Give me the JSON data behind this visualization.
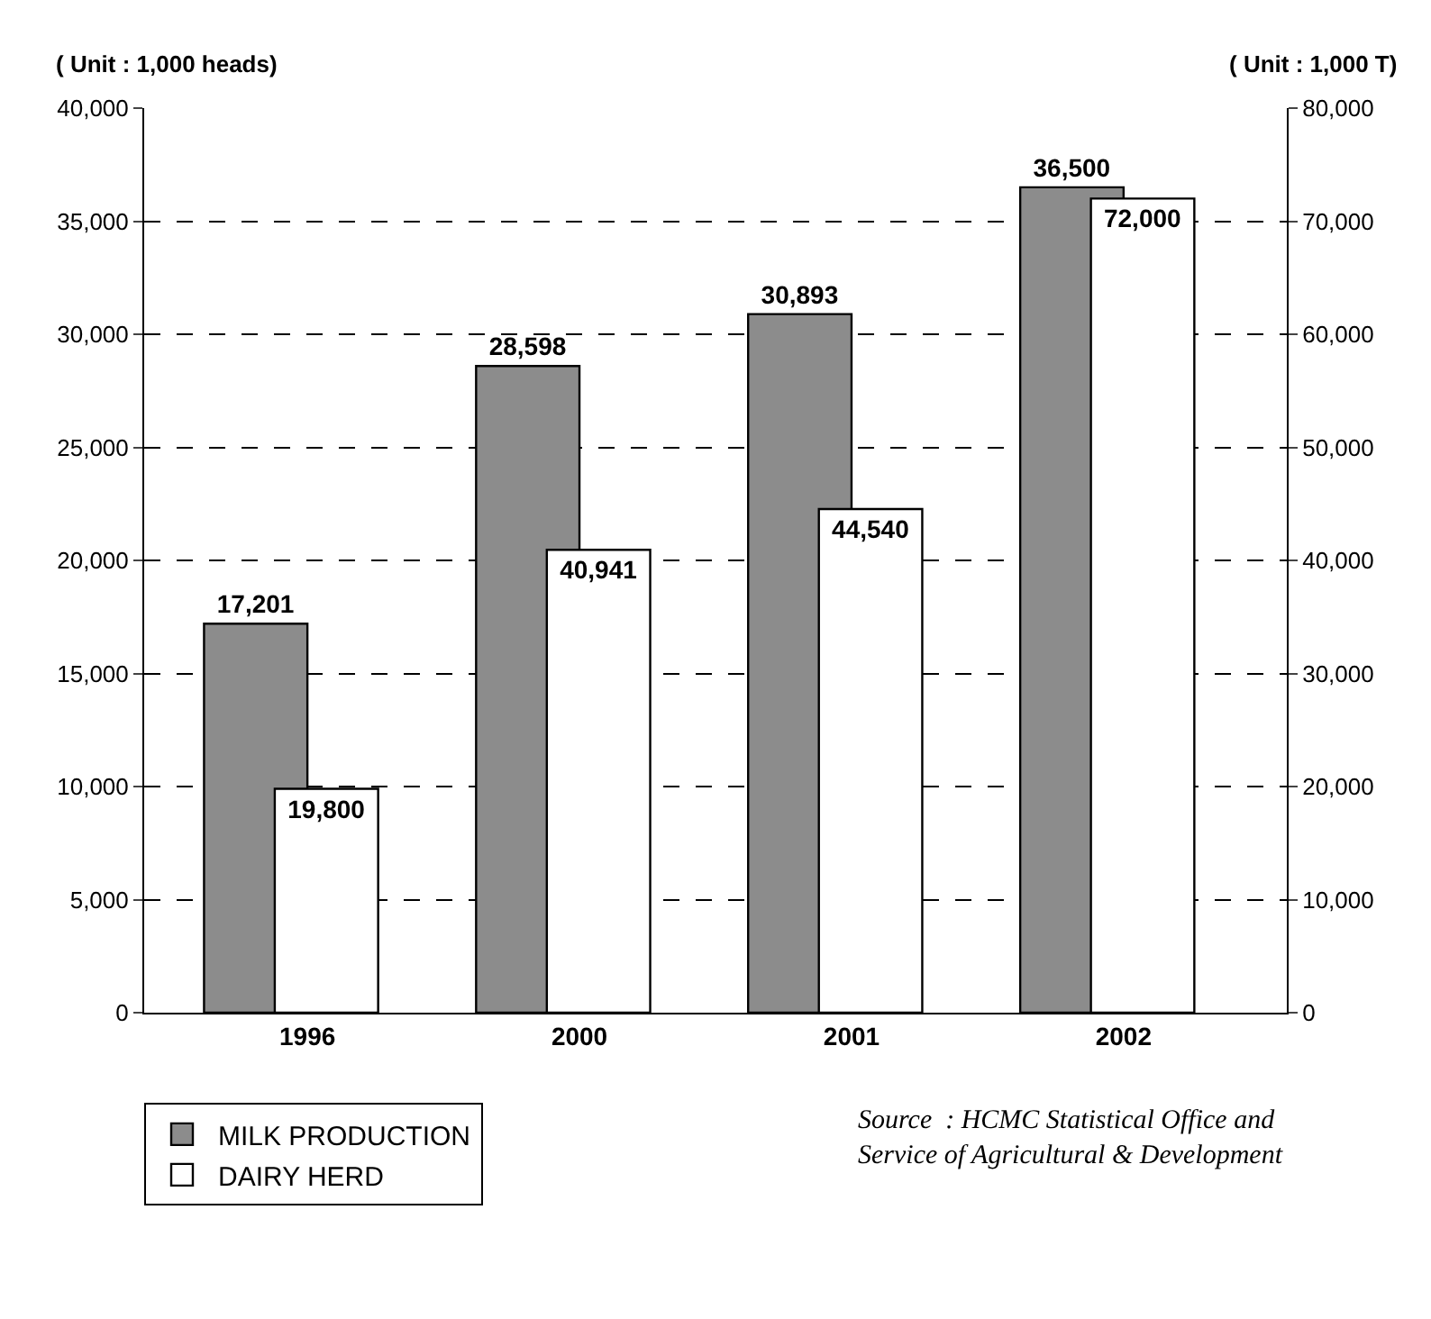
{
  "chart_data": {
    "type": "bar",
    "ylabel": "( Unit : 1,000 heads)",
    "y2label": "( Unit : 1,000 T)",
    "categories": [
      "1996",
      "2000",
      "2001",
      "2002"
    ],
    "series": [
      {
        "name": "MILK PRODUCTION",
        "color": "#8c8c8c",
        "values": [
          17201,
          28598,
          30893,
          36500
        ],
        "value_labels": [
          "17,201",
          "28,598",
          "30,893",
          "36,500"
        ]
      },
      {
        "name": "DAIRY HERD",
        "color": "#ffffff",
        "axis": "y2",
        "values": [
          19800,
          40941,
          44540,
          72000
        ],
        "value_labels": [
          "19,800",
          "40,941",
          "44,540",
          "72,000"
        ]
      }
    ],
    "ylim": [
      0,
      40000
    ],
    "yticks": [
      {
        "value": 0,
        "label": "0"
      },
      {
        "value": 5000,
        "label": "5,000"
      },
      {
        "value": 10000,
        "label": "10,000"
      },
      {
        "value": 15000,
        "label": "15,000"
      },
      {
        "value": 20000,
        "label": "20,000"
      },
      {
        "value": 25000,
        "label": "25,000"
      },
      {
        "value": 30000,
        "label": "30,000"
      },
      {
        "value": 35000,
        "label": "35,000"
      },
      {
        "value": 40000,
        "label": "40,000"
      }
    ],
    "y2lim": [
      0,
      80000
    ],
    "y2ticks": [
      {
        "value": 0,
        "label": "0"
      },
      {
        "value": 10000,
        "label": "10,000"
      },
      {
        "value": 20000,
        "label": "20,000"
      },
      {
        "value": 30000,
        "label": "30,000"
      },
      {
        "value": 40000,
        "label": "40,000"
      },
      {
        "value": 50000,
        "label": "50,000"
      },
      {
        "value": 60000,
        "label": "60,000"
      },
      {
        "value": 70000,
        "label": "70,000"
      },
      {
        "value": 80000,
        "label": "80,000"
      }
    ],
    "grid": "y",
    "legend": "bottom left",
    "annotations": [
      "Source  : HCMC Statistical Office and\nService of Agricultural & Development"
    ]
  }
}
